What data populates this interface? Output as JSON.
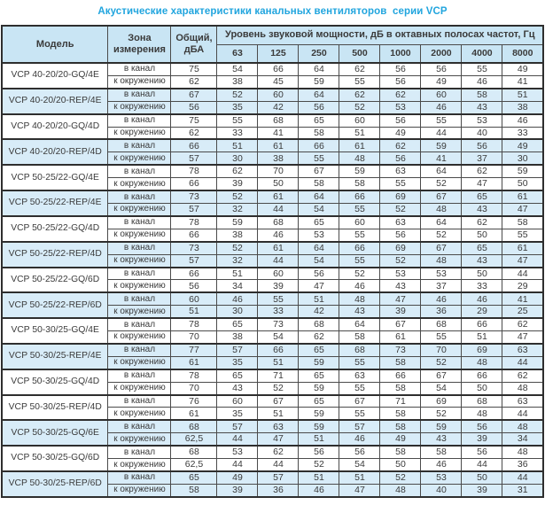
{
  "title": "Акустические характеристики канальных вентиляторов  серии VCP",
  "header": {
    "model": "Модель",
    "zone": "Зона измерения",
    "total": "Общий, дБА",
    "freq_title": "Уровень звуковой мощности, дБ в октавных полосах частот, Гц",
    "freqs": [
      "63",
      "125",
      "250",
      "500",
      "1000",
      "2000",
      "4000",
      "8000"
    ]
  },
  "zone_labels": {
    "duct": "в канал",
    "ambient": "к окружению"
  },
  "colors": {
    "title": "#21a5de",
    "header_bg": "#c9e5f4",
    "shade_bg": "#d8ecf8",
    "border_thin": "#4b4b4b",
    "border_thick": "#2e2e2e",
    "text": "#3a3a3a"
  },
  "rows": [
    {
      "model": "VCP 40-20/20-GQ/4E",
      "shaded": false,
      "duct": {
        "total": "75",
        "levels": [
          "54",
          "66",
          "64",
          "62",
          "56",
          "56",
          "55",
          "49"
        ]
      },
      "ambient": {
        "total": "62",
        "levels": [
          "38",
          "45",
          "59",
          "55",
          "56",
          "49",
          "46",
          "41"
        ]
      }
    },
    {
      "model": "VCP 40-20/20-REP/4E",
      "shaded": true,
      "duct": {
        "total": "67",
        "levels": [
          "52",
          "60",
          "64",
          "62",
          "62",
          "60",
          "58",
          "51"
        ]
      },
      "ambient": {
        "total": "56",
        "levels": [
          "35",
          "42",
          "56",
          "52",
          "53",
          "46",
          "43",
          "38"
        ]
      }
    },
    {
      "model": "VCP 40-20/20-GQ/4D",
      "shaded": false,
      "duct": {
        "total": "75",
        "levels": [
          "55",
          "68",
          "65",
          "60",
          "56",
          "55",
          "53",
          "46"
        ]
      },
      "ambient": {
        "total": "62",
        "levels": [
          "33",
          "41",
          "58",
          "51",
          "49",
          "44",
          "40",
          "33"
        ]
      }
    },
    {
      "model": "VCP 40-20/20-REP/4D",
      "shaded": true,
      "duct": {
        "total": "66",
        "levels": [
          "51",
          "61",
          "66",
          "61",
          "62",
          "59",
          "56",
          "49"
        ]
      },
      "ambient": {
        "total": "57",
        "levels": [
          "30",
          "38",
          "55",
          "48",
          "56",
          "41",
          "37",
          "30"
        ]
      }
    },
    {
      "model": "VCP 50-25/22-GQ/4E",
      "shaded": false,
      "duct": {
        "total": "78",
        "levels": [
          "62",
          "70",
          "67",
          "59",
          "63",
          "64",
          "62",
          "59"
        ]
      },
      "ambient": {
        "total": "66",
        "levels": [
          "39",
          "50",
          "58",
          "58",
          "55",
          "52",
          "47",
          "50"
        ]
      }
    },
    {
      "model": "VCP 50-25/22-REP/4E",
      "shaded": true,
      "duct": {
        "total": "73",
        "levels": [
          "52",
          "61",
          "64",
          "66",
          "69",
          "67",
          "65",
          "61"
        ]
      },
      "ambient": {
        "total": "57",
        "levels": [
          "32",
          "44",
          "54",
          "55",
          "52",
          "48",
          "43",
          "47"
        ]
      }
    },
    {
      "model": "VCP 50-25/22-GQ/4D",
      "shaded": false,
      "duct": {
        "total": "78",
        "levels": [
          "59",
          "68",
          "65",
          "60",
          "63",
          "64",
          "62",
          "58"
        ]
      },
      "ambient": {
        "total": "66",
        "levels": [
          "38",
          "46",
          "53",
          "55",
          "56",
          "52",
          "50",
          "55"
        ]
      }
    },
    {
      "model": "VCP 50-25/22-REP/4D",
      "shaded": true,
      "duct": {
        "total": "73",
        "levels": [
          "52",
          "61",
          "64",
          "66",
          "69",
          "67",
          "65",
          "61"
        ]
      },
      "ambient": {
        "total": "57",
        "levels": [
          "32",
          "44",
          "54",
          "55",
          "52",
          "48",
          "43",
          "47"
        ]
      }
    },
    {
      "model": "VCP 50-25/22-GQ/6D",
      "shaded": false,
      "duct": {
        "total": "66",
        "levels": [
          "51",
          "60",
          "56",
          "52",
          "53",
          "53",
          "50",
          "44"
        ]
      },
      "ambient": {
        "total": "56",
        "levels": [
          "34",
          "39",
          "47",
          "46",
          "43",
          "37",
          "33",
          "29"
        ]
      }
    },
    {
      "model": "VCP 50-25/22-REP/6D",
      "shaded": true,
      "duct": {
        "total": "60",
        "levels": [
          "46",
          "55",
          "51",
          "48",
          "47",
          "46",
          "46",
          "41"
        ]
      },
      "ambient": {
        "total": "51",
        "levels": [
          "30",
          "33",
          "42",
          "43",
          "39",
          "36",
          "29",
          "25"
        ]
      }
    },
    {
      "model": "VCP 50-30/25-GQ/4E",
      "shaded": false,
      "duct": {
        "total": "78",
        "levels": [
          "65",
          "73",
          "68",
          "64",
          "67",
          "68",
          "66",
          "62"
        ]
      },
      "ambient": {
        "total": "70",
        "levels": [
          "38",
          "54",
          "62",
          "58",
          "61",
          "55",
          "51",
          "47"
        ]
      }
    },
    {
      "model": "VCP 50-30/25-REP/4E",
      "shaded": true,
      "duct": {
        "total": "77",
        "levels": [
          "57",
          "66",
          "65",
          "68",
          "73",
          "70",
          "69",
          "63"
        ]
      },
      "ambient": {
        "total": "61",
        "levels": [
          "35",
          "51",
          "59",
          "55",
          "58",
          "52",
          "48",
          "44"
        ]
      }
    },
    {
      "model": "VCP 50-30/25-GQ/4D",
      "shaded": false,
      "duct": {
        "total": "78",
        "levels": [
          "65",
          "71",
          "65",
          "63",
          "66",
          "67",
          "66",
          "62"
        ]
      },
      "ambient": {
        "total": "70",
        "levels": [
          "43",
          "52",
          "59",
          "55",
          "58",
          "54",
          "50",
          "48"
        ]
      }
    },
    {
      "model": "VCP 50-30/25-REP/4D",
      "shaded": false,
      "duct": {
        "total": "76",
        "levels": [
          "60",
          "67",
          "65",
          "67",
          "71",
          "69",
          "68",
          "63"
        ]
      },
      "ambient": {
        "total": "61",
        "levels": [
          "35",
          "51",
          "59",
          "55",
          "58",
          "52",
          "48",
          "44"
        ]
      }
    },
    {
      "model": "VCP 50-30/25-GQ/6E",
      "shaded": true,
      "duct": {
        "total": "68",
        "levels": [
          "57",
          "63",
          "59",
          "57",
          "58",
          "59",
          "56",
          "48"
        ]
      },
      "ambient": {
        "total": "62,5",
        "levels": [
          "44",
          "47",
          "51",
          "46",
          "49",
          "43",
          "39",
          "34"
        ]
      }
    },
    {
      "model": "VCP 50-30/25-GQ/6D",
      "shaded": false,
      "duct": {
        "total": "68",
        "levels": [
          "53",
          "62",
          "56",
          "56",
          "58",
          "58",
          "56",
          "48"
        ]
      },
      "ambient": {
        "total": "62,5",
        "levels": [
          "44",
          "44",
          "52",
          "54",
          "50",
          "46",
          "44",
          "36"
        ]
      }
    },
    {
      "model": "VCP 50-30/25-REP/6D",
      "shaded": true,
      "duct": {
        "total": "65",
        "levels": [
          "49",
          "57",
          "51",
          "51",
          "52",
          "53",
          "50",
          "44"
        ]
      },
      "ambient": {
        "total": "58",
        "levels": [
          "39",
          "36",
          "46",
          "47",
          "48",
          "40",
          "39",
          "31"
        ]
      }
    }
  ]
}
